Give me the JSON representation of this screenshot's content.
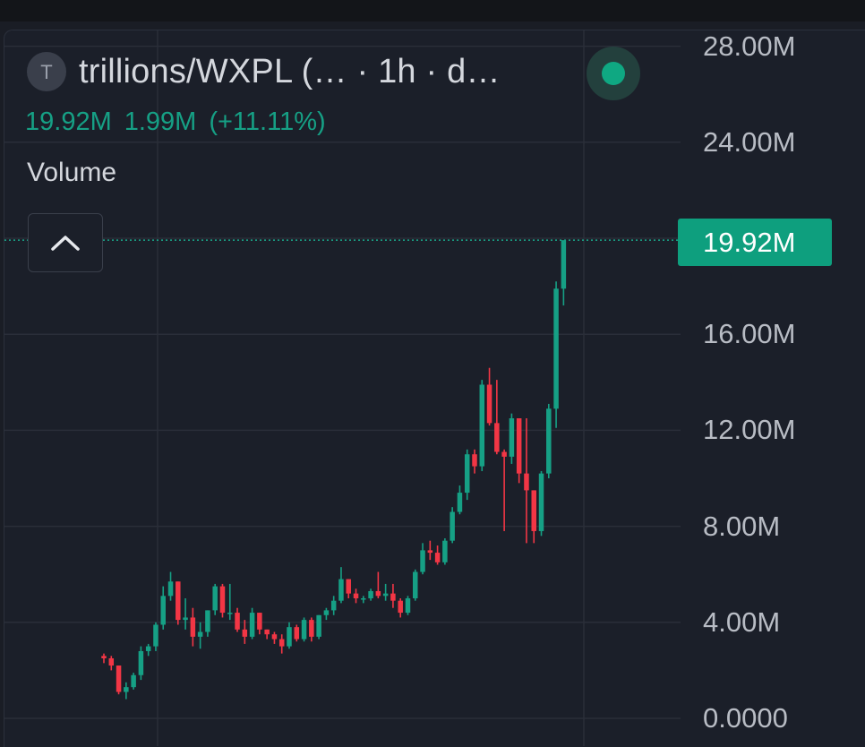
{
  "header": {
    "symbol_initial": "T",
    "title": "trillions/WXPL (…   · 1h · d…",
    "status_color": "#0fa882"
  },
  "values": {
    "volume": "19.92M",
    "change": "1.99M",
    "change_pct": "(+11.11%)"
  },
  "series_label": "Volume",
  "colors": {
    "up": "#16a085",
    "down": "#f23645",
    "background": "#1b1f29",
    "grid": "#2a2e39",
    "price_line": "#1aa88a"
  },
  "chart_data": {
    "type": "candlestick",
    "series_name": "Volume",
    "interval": "1h",
    "ylim": [
      0,
      30000000
    ],
    "y_ticks": [
      "28.00M",
      "24.00M",
      "20.00M",
      "16.00M",
      "12.00M",
      "8.00M",
      "4.00M",
      "0.0000"
    ],
    "y_ticks_values": [
      28000000,
      24000000,
      20000000,
      16000000,
      12000000,
      8000000,
      4000000,
      0
    ],
    "last_value": 19920000,
    "last_value_label": "19.92M",
    "candles": [
      [
        2.6,
        2.7,
        2.3,
        2.5
      ],
      [
        2.5,
        2.6,
        2.0,
        2.2
      ],
      [
        2.2,
        2.2,
        1.0,
        1.1
      ],
      [
        1.1,
        1.5,
        0.8,
        1.3
      ],
      [
        1.3,
        1.9,
        1.2,
        1.8
      ],
      [
        1.8,
        3.0,
        1.6,
        2.8
      ],
      [
        2.8,
        3.1,
        2.6,
        3.0
      ],
      [
        3.0,
        4.0,
        2.8,
        3.9
      ],
      [
        3.9,
        5.5,
        3.7,
        5.1
      ],
      [
        5.1,
        6.1,
        4.9,
        5.7
      ],
      [
        5.7,
        5.7,
        3.9,
        4.1
      ],
      [
        4.1,
        5.0,
        3.7,
        4.2
      ],
      [
        4.2,
        4.6,
        3.0,
        3.4
      ],
      [
        3.4,
        4.0,
        2.9,
        3.6
      ],
      [
        3.6,
        4.5,
        3.4,
        4.5
      ],
      [
        4.5,
        5.6,
        4.3,
        5.5
      ],
      [
        5.5,
        5.6,
        4.2,
        4.4
      ],
      [
        4.4,
        5.6,
        4.1,
        4.4
      ],
      [
        4.4,
        4.6,
        3.6,
        3.7
      ],
      [
        3.7,
        4.1,
        3.1,
        3.4
      ],
      [
        3.4,
        4.6,
        3.3,
        4.4
      ],
      [
        4.4,
        4.4,
        3.5,
        3.7
      ],
      [
        3.7,
        3.7,
        3.3,
        3.5
      ],
      [
        3.5,
        3.6,
        3.1,
        3.3
      ],
      [
        3.3,
        3.5,
        2.7,
        3.0
      ],
      [
        3.0,
        4.0,
        2.9,
        3.8
      ],
      [
        3.8,
        3.9,
        3.2,
        3.3
      ],
      [
        3.3,
        4.2,
        3.2,
        4.1
      ],
      [
        4.1,
        4.2,
        3.2,
        3.4
      ],
      [
        3.4,
        4.3,
        3.3,
        4.3
      ],
      [
        4.3,
        4.6,
        4.1,
        4.5
      ],
      [
        4.5,
        5.1,
        4.3,
        4.9
      ],
      [
        4.9,
        6.3,
        4.8,
        5.8
      ],
      [
        5.8,
        5.8,
        5.0,
        5.2
      ],
      [
        5.2,
        5.4,
        4.8,
        5.0
      ],
      [
        5.0,
        5.1,
        4.8,
        5.0
      ],
      [
        5.0,
        5.4,
        4.9,
        5.3
      ],
      [
        5.3,
        6.1,
        5.0,
        5.1
      ],
      [
        5.1,
        5.6,
        4.9,
        5.2
      ],
      [
        5.2,
        5.6,
        4.6,
        4.9
      ],
      [
        4.9,
        5.0,
        4.2,
        4.4
      ],
      [
        4.4,
        5.1,
        4.3,
        5.0
      ],
      [
        5.0,
        6.2,
        4.9,
        6.1
      ],
      [
        6.1,
        7.3,
        6.0,
        7.0
      ],
      [
        7.0,
        7.4,
        6.6,
        6.9
      ],
      [
        6.9,
        7.2,
        6.4,
        6.5
      ],
      [
        6.5,
        7.5,
        6.4,
        7.4
      ],
      [
        7.4,
        8.8,
        7.3,
        8.6
      ],
      [
        8.6,
        9.7,
        8.5,
        9.4
      ],
      [
        9.4,
        11.2,
        9.1,
        11.0
      ],
      [
        11.0,
        11.2,
        10.2,
        10.5
      ],
      [
        10.5,
        14.1,
        10.3,
        13.9
      ],
      [
        13.9,
        14.6,
        12.2,
        12.3
      ],
      [
        12.3,
        14.1,
        11.0,
        11.1
      ],
      [
        11.1,
        11.2,
        7.8,
        10.9
      ],
      [
        10.9,
        12.7,
        10.6,
        12.5
      ],
      [
        12.5,
        12.5,
        9.8,
        10.2
      ],
      [
        10.2,
        12.5,
        7.3,
        9.5
      ],
      [
        9.5,
        9.5,
        7.3,
        7.8
      ],
      [
        7.8,
        10.3,
        7.6,
        10.2
      ],
      [
        10.2,
        13.1,
        10.0,
        12.9
      ],
      [
        12.9,
        18.2,
        12.1,
        17.9
      ],
      [
        17.9,
        19.9,
        17.2,
        19.92
      ]
    ],
    "candle_format": "[open, high, low, close] in millions"
  }
}
